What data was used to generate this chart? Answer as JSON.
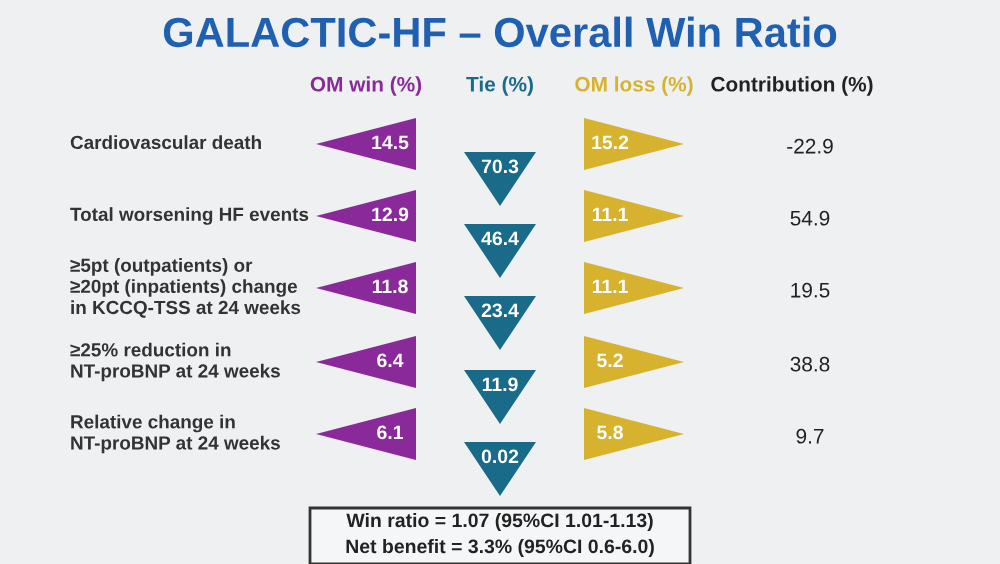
{
  "chart_data": {
    "type": "other",
    "title": "GALACTIC-HF – Overall Win Ratio",
    "categories": [
      "Cardiovascular death",
      "Total worsening HF events",
      "≥5pt (outpatients) or\n≥20pt (inpatients) change\nin KCCQ-TSS at 24 weeks",
      "≥25% reduction in\nNT-proBNP at 24 weeks",
      "Relative change in\nNT-proBNP at 24 weeks"
    ],
    "series": [
      {
        "name": "OM win (%)",
        "color": "#8a2a9a",
        "values": [
          14.5,
          12.9,
          11.8,
          6.4,
          6.1
        ]
      },
      {
        "name": "Tie (%)",
        "color": "#1a6a8a",
        "values": [
          70.3,
          46.4,
          23.4,
          11.9,
          0.02
        ]
      },
      {
        "name": "OM loss (%)",
        "color": "#d6b22e",
        "values": [
          15.2,
          11.1,
          11.1,
          5.2,
          5.8
        ]
      },
      {
        "name": "Contribution (%)",
        "color": "#222222",
        "values": [
          -22.9,
          54.9,
          19.5,
          38.8,
          9.7
        ]
      }
    ],
    "data_labels": true,
    "annotations": [
      "Win ratio = 1.07 (95%CI 1.01-1.13)",
      "Net benefit = 3.3% (95%CI 0.6-6.0)"
    ]
  }
}
